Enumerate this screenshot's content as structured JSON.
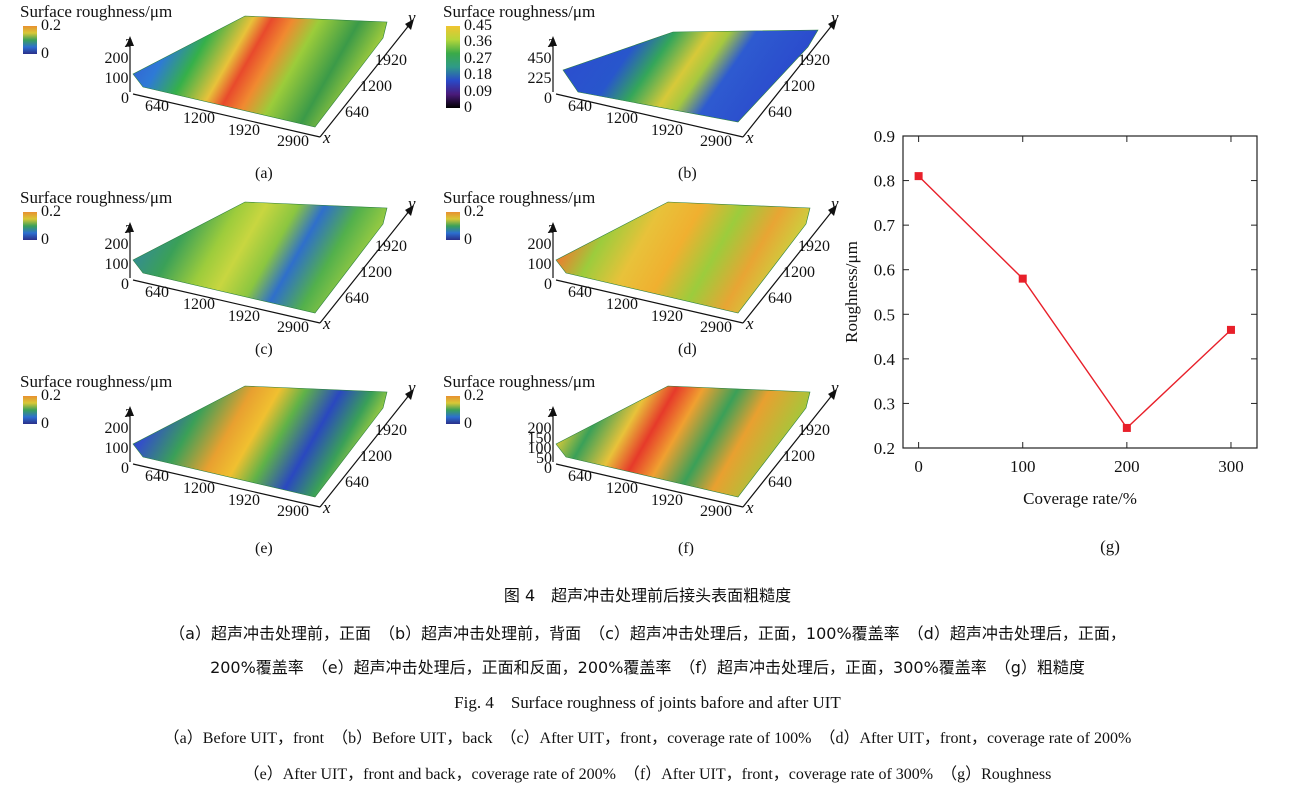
{
  "panels": [
    {
      "id": "a",
      "title": "Surface roughness/μm",
      "cb_ticks": [
        "0.2",
        "0"
      ],
      "z_ticks": [
        "200",
        "100",
        "0"
      ],
      "x_ticks": [
        "640",
        "1200",
        "1920",
        "2900"
      ],
      "y_ticks": [
        "1920",
        "1200",
        "640"
      ],
      "z": "z",
      "x": "x",
      "y": "y",
      "label": "(a)"
    },
    {
      "id": "b",
      "title": "Surface roughness/μm",
      "cb_ticks": [
        "0.45",
        "0.36",
        "0.27",
        "0.18",
        "0.09",
        "0"
      ],
      "z_ticks": [
        "450",
        "225",
        "0"
      ],
      "x_ticks": [
        "640",
        "1200",
        "1920",
        "2900"
      ],
      "y_ticks": [
        "1920",
        "1200",
        "640"
      ],
      "z": "z",
      "x": "x",
      "y": "y",
      "label": "(b)"
    },
    {
      "id": "c",
      "title": "Surface roughness/μm",
      "cb_ticks": [
        "0.2",
        "0"
      ],
      "z_ticks": [
        "200",
        "100",
        "0"
      ],
      "x_ticks": [
        "640",
        "1200",
        "1920",
        "2900"
      ],
      "y_ticks": [
        "1920",
        "1200",
        "640"
      ],
      "z": "z",
      "x": "x",
      "y": "y",
      "label": "(c)"
    },
    {
      "id": "d",
      "title": "Surface roughness/μm",
      "cb_ticks": [
        "0.2",
        "0"
      ],
      "z_ticks": [
        "200",
        "100",
        "0"
      ],
      "x_ticks": [
        "640",
        "1200",
        "1920",
        "2900"
      ],
      "y_ticks": [
        "1920",
        "1200",
        "640"
      ],
      "z": "z",
      "x": "x",
      "y": "y",
      "label": "(d)"
    },
    {
      "id": "e",
      "title": "Surface roughness/μm",
      "cb_ticks": [
        "0.2",
        "0"
      ],
      "z_ticks": [
        "200",
        "100",
        "0"
      ],
      "x_ticks": [
        "640",
        "1200",
        "1920",
        "2900"
      ],
      "y_ticks": [
        "1920",
        "1200",
        "640"
      ],
      "z": "z",
      "x": "x",
      "y": "y",
      "label": "(e)"
    },
    {
      "id": "f",
      "title": "Surface roughness/μm",
      "cb_ticks": [
        "0.2",
        "0"
      ],
      "z_ticks": [
        "200",
        "150",
        "100",
        "50",
        "0"
      ],
      "x_ticks": [
        "640",
        "1200",
        "1920",
        "2900"
      ],
      "y_ticks": [
        "1920",
        "1200",
        "640"
      ],
      "z": "z",
      "x": "x",
      "y": "y",
      "label": "(f)"
    }
  ],
  "chart_data": {
    "type": "line",
    "x": [
      0,
      100,
      200,
      300
    ],
    "series": [
      {
        "values": [
          0.81,
          0.58,
          0.245,
          0.465
        ]
      }
    ],
    "xlabel": "Coverage rate/%",
    "ylabel": "Roughness/μm",
    "xlim": [
      -15,
      325
    ],
    "ylim": [
      0.2,
      0.9
    ],
    "x_ticks": [
      "0",
      "100",
      "200",
      "300"
    ],
    "y_ticks": [
      "0.2",
      "0.3",
      "0.4",
      "0.5",
      "0.6",
      "0.7",
      "0.8",
      "0.9"
    ],
    "grid": false,
    "legend": "none",
    "color": "#e8202a",
    "label": "(g)"
  },
  "captions": {
    "fig_cn": "图 4　超声冲击处理前后接头表面粗糙度",
    "sub_cn_1": "（a）超声冲击处理前，正面　（b）超声冲击处理前，背面　（c）超声冲击处理后，正面，100%覆盖率　（d）超声冲击处理后，正面，",
    "sub_cn_2": "200%覆盖率　（e）超声冲击处理后，正面和反面，200%覆盖率　（f）超声冲击处理后，正面，300%覆盖率　（g）粗糙度",
    "fig_en": "Fig. 4　Surface roughness of joints bafore and after UIT",
    "sub_en_1": "（a）Before UIT，front　（b）Before UIT，back　（c）After UIT，front，coverage rate of 100%　（d）After UIT，front，coverage rate of 200%",
    "sub_en_2": "（e）After UIT，front and back，coverage rate of 200%　（f）After UIT，front，coverage rate of 300%　（g）Roughness"
  }
}
